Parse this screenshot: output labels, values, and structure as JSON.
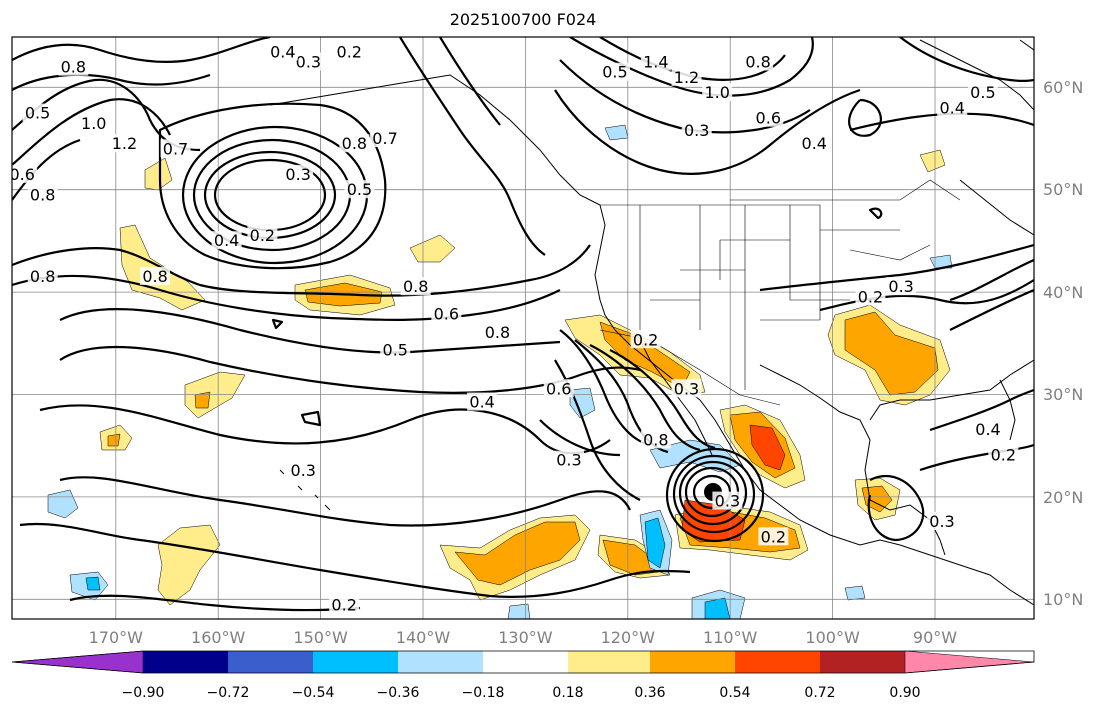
{
  "map": {
    "title": "2025100700 F024",
    "lon_labels": [
      "170°W",
      "160°W",
      "150°W",
      "140°W",
      "130°W",
      "120°W",
      "110°W",
      "100°W",
      "90°W"
    ],
    "lat_labels": [
      "60°N",
      "50°N",
      "40°N",
      "30°N",
      "20°N",
      "10°N"
    ],
    "extent": {
      "lon": [
        -180,
        -80
      ],
      "lat": [
        8,
        65
      ]
    },
    "contour_labels": [
      {
        "text": "0.2",
        "lon": -147,
        "lat": 63.5
      },
      {
        "text": "0.3",
        "lon": -151,
        "lat": 62.5
      },
      {
        "text": "0.4",
        "lon": -153.5,
        "lat": 63.5
      },
      {
        "text": "0.8",
        "lon": -174,
        "lat": 62
      },
      {
        "text": "0.5",
        "lon": -177.5,
        "lat": 57.5
      },
      {
        "text": "1.0",
        "lon": -172,
        "lat": 56.5
      },
      {
        "text": "1.2",
        "lon": -169,
        "lat": 54.5
      },
      {
        "text": "0.7",
        "lon": -164,
        "lat": 54
      },
      {
        "text": "0.6",
        "lon": -179,
        "lat": 51.5
      },
      {
        "text": "0.8",
        "lon": -177,
        "lat": 49.5
      },
      {
        "text": "0.3",
        "lon": -152,
        "lat": 51.5
      },
      {
        "text": "0.8",
        "lon": -146.5,
        "lat": 54.5
      },
      {
        "text": "0.7",
        "lon": -143.5,
        "lat": 55
      },
      {
        "text": "0.5",
        "lon": -146,
        "lat": 50
      },
      {
        "text": "0.2",
        "lon": -155.5,
        "lat": 45.5
      },
      {
        "text": "0.4",
        "lon": -159,
        "lat": 45
      },
      {
        "text": "0.8",
        "lon": -177,
        "lat": 41.5
      },
      {
        "text": "0.8",
        "lon": -166,
        "lat": 41.5
      },
      {
        "text": "0.8",
        "lon": -140.5,
        "lat": 40.5
      },
      {
        "text": "0.6",
        "lon": -137.5,
        "lat": 37.8
      },
      {
        "text": "0.8",
        "lon": -132.5,
        "lat": 36
      },
      {
        "text": "0.5",
        "lon": -142.5,
        "lat": 34.3
      },
      {
        "text": "0.6",
        "lon": -126.5,
        "lat": 30.5
      },
      {
        "text": "0.4",
        "lon": -134,
        "lat": 29.2
      },
      {
        "text": "0.3",
        "lon": -151.5,
        "lat": 22.5
      },
      {
        "text": "0.3",
        "lon": -125.5,
        "lat": 23.5
      },
      {
        "text": "0.8",
        "lon": -117,
        "lat": 25.5
      },
      {
        "text": "0.2",
        "lon": -118,
        "lat": 35.3
      },
      {
        "text": "0.3",
        "lon": -114,
        "lat": 30.5
      },
      {
        "text": "0.2",
        "lon": -105.5,
        "lat": 16
      },
      {
        "text": "0.3",
        "lon": -110,
        "lat": 19.5
      },
      {
        "text": "0.2",
        "lon": -147.5,
        "lat": 9.3
      },
      {
        "text": "0.5",
        "lon": -121,
        "lat": 61.5
      },
      {
        "text": "1.4",
        "lon": -117,
        "lat": 62.5
      },
      {
        "text": "1.2",
        "lon": -114,
        "lat": 61
      },
      {
        "text": "1.0",
        "lon": -111,
        "lat": 59.5
      },
      {
        "text": "0.8",
        "lon": -107,
        "lat": 62.5
      },
      {
        "text": "0.3",
        "lon": -113,
        "lat": 55.8
      },
      {
        "text": "0.6",
        "lon": -106,
        "lat": 57
      },
      {
        "text": "0.4",
        "lon": -101.5,
        "lat": 54.5
      },
      {
        "text": "0.5",
        "lon": -85,
        "lat": 59.5
      },
      {
        "text": "0.4",
        "lon": -88,
        "lat": 58
      },
      {
        "text": "0.2",
        "lon": -96,
        "lat": 39.5
      },
      {
        "text": "0.3",
        "lon": -93,
        "lat": 40.5
      },
      {
        "text": "0.4",
        "lon": -84.5,
        "lat": 26.5
      },
      {
        "text": "0.2",
        "lon": -83,
        "lat": 24
      },
      {
        "text": "0.3",
        "lon": -89,
        "lat": 17.5
      }
    ]
  },
  "colorbar": {
    "tick_labels": [
      "−0.90",
      "−0.72",
      "−0.54",
      "−0.36",
      "−0.18",
      "0.18",
      "0.36",
      "0.54",
      "0.72",
      "0.90"
    ],
    "colors": [
      "#9932CC",
      "#00008B",
      "#3A5FCD",
      "#00BFFF",
      "#B0E2FF",
      "#FFFFFF",
      "#FFEC8B",
      "#FFA500",
      "#FF4500",
      "#B22222",
      "#FF88AA"
    ]
  }
}
